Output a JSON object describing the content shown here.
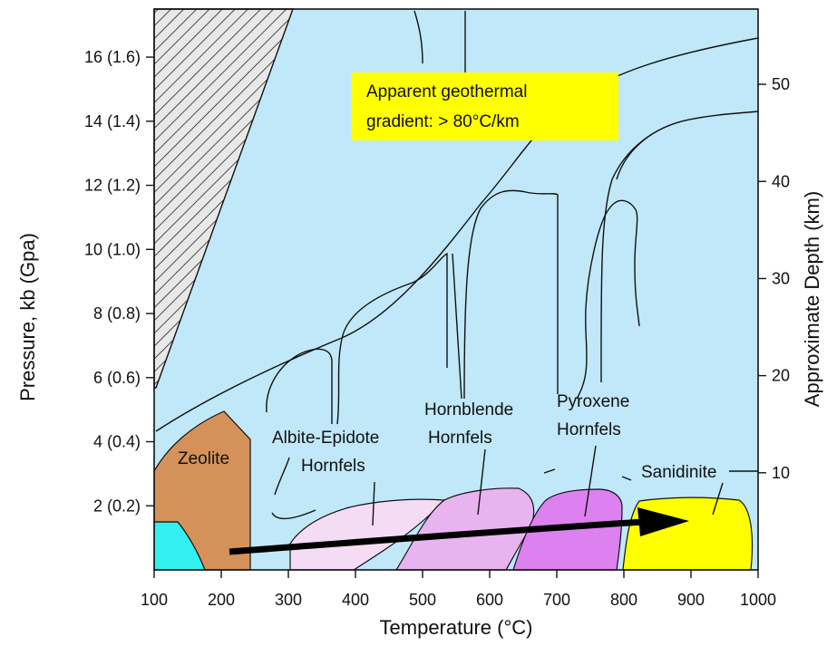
{
  "chart_data": {
    "type": "diagram",
    "x_axis": {
      "label": "Temperature (°C)",
      "ticks": [
        "100",
        "200",
        "300",
        "400",
        "500",
        "600",
        "700",
        "800",
        "900",
        "1000"
      ],
      "range": [
        100,
        1000
      ]
    },
    "y_axis_left": {
      "label": "Pressure, kb (Gpa)",
      "ticks": [
        "2 (0.2)",
        "4 (0.4)",
        "6 (0.6)",
        "8 (0.8)",
        "10 (1.0)",
        "12 (1.2)",
        "14 (1.4)",
        "16 (1.6)"
      ],
      "unit": "kb",
      "range_kb": [
        0,
        17.5
      ]
    },
    "y_axis_right": {
      "label": "Approximate Depth (km)",
      "ticks": [
        "10",
        "20",
        "30",
        "40",
        "50"
      ],
      "unit": "km"
    },
    "gradient_box": {
      "line1": "Apparent geothermal",
      "line2": "gradient:  > 80°C/km"
    },
    "facies": [
      {
        "name": "Zeolite",
        "color": "#d4925a"
      },
      {
        "name": "Albite-Epidote Hornfels",
        "line1": "Albite-Epidote",
        "line2": "Hornfels",
        "color": "#f5dcf5"
      },
      {
        "name": "Hornblende Hornfels",
        "line1": "Hornblende",
        "line2": "Hornfels",
        "color": "#e8b4f0"
      },
      {
        "name": "Pyroxene Hornfels",
        "line1": "Pyroxene",
        "line2": "Hornfels",
        "color": "#dd80f0"
      },
      {
        "name": "Sanidinite",
        "color": "#ffff00"
      }
    ],
    "colors": {
      "background": "#c0e8f8",
      "low_grade_corner": "#33f0f0",
      "gradient_box": "#ffff00",
      "arrow": "#000000"
    }
  }
}
